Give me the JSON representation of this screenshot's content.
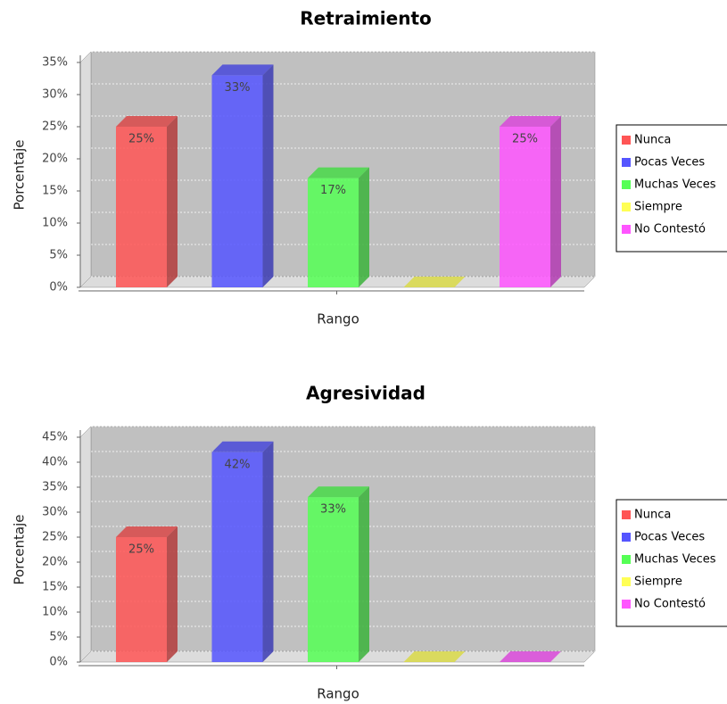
{
  "chart_data": [
    {
      "type": "bar3d",
      "title": "Retraimiento",
      "y_label": "Porcentaje",
      "x_label": "Rango",
      "ylim": [
        0,
        35
      ],
      "yticks": [
        {
          "value": 0,
          "label": "0%"
        },
        {
          "value": 5,
          "label": "5%"
        },
        {
          "value": 10,
          "label": "10%"
        },
        {
          "value": 15,
          "label": "15%"
        },
        {
          "value": 20,
          "label": "20%"
        },
        {
          "value": 25,
          "label": "25%"
        },
        {
          "value": 30,
          "label": "30%"
        },
        {
          "value": 35,
          "label": "35%"
        }
      ],
      "grid": true,
      "legend": "right",
      "series": [
        {
          "name": "Nunca",
          "color": "#ff5555",
          "values": [
            25
          ],
          "value_labels": [
            "25%"
          ]
        },
        {
          "name": "Pocas Veces",
          "color": "#5555ff",
          "values": [
            33
          ],
          "value_labels": [
            "33%"
          ]
        },
        {
          "name": "Muchas Veces",
          "color": "#55ff55",
          "values": [
            17
          ],
          "value_labels": [
            "17%"
          ]
        },
        {
          "name": "Siempre",
          "color": "#ffff55",
          "values": [
            0
          ]
        },
        {
          "name": "No Contestó",
          "color": "#ff55ff",
          "values": [
            25
          ],
          "value_labels": [
            "25%"
          ]
        }
      ]
    },
    {
      "type": "bar3d",
      "title": "Agresividad",
      "y_label": "Porcentaje",
      "x_label": "Rango",
      "ylim": [
        0,
        45
      ],
      "yticks": [
        {
          "value": 0,
          "label": "0%"
        },
        {
          "value": 5,
          "label": "5%"
        },
        {
          "value": 10,
          "label": "10%"
        },
        {
          "value": 15,
          "label": "15%"
        },
        {
          "value": 20,
          "label": "20%"
        },
        {
          "value": 25,
          "label": "25%"
        },
        {
          "value": 30,
          "label": "30%"
        },
        {
          "value": 35,
          "label": "35%"
        },
        {
          "value": 40,
          "label": "40%"
        },
        {
          "value": 45,
          "label": "45%"
        }
      ],
      "grid": true,
      "legend": "right",
      "series": [
        {
          "name": "Nunca",
          "color": "#ff5555",
          "values": [
            25
          ],
          "value_labels": [
            "25%"
          ]
        },
        {
          "name": "Pocas Veces",
          "color": "#5555ff",
          "values": [
            42
          ],
          "value_labels": [
            "42%"
          ]
        },
        {
          "name": "Muchas Veces",
          "color": "#55ff55",
          "values": [
            33
          ],
          "value_labels": [
            "33%"
          ]
        },
        {
          "name": "Siempre",
          "color": "#ffff55",
          "values": [
            0
          ]
        },
        {
          "name": "No Contestó",
          "color": "#ff55ff",
          "values": [
            0
          ]
        }
      ]
    }
  ]
}
